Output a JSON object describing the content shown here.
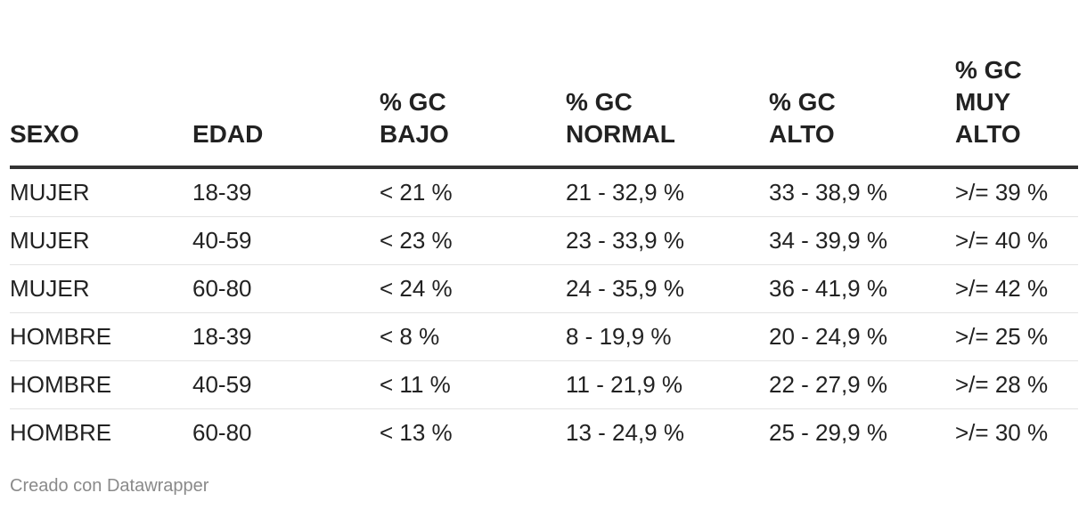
{
  "chart_data": {
    "type": "table",
    "columns": [
      [
        "SEXO"
      ],
      [
        "EDAD"
      ],
      [
        "% GC",
        "BAJO"
      ],
      [
        "% GC",
        "NORMAL"
      ],
      [
        "% GC",
        "ALTO"
      ],
      [
        "% GC",
        "MUY",
        "ALTO"
      ]
    ],
    "rows": [
      [
        "MUJER",
        "18-39",
        "< 21 %",
        "21 - 32,9 %",
        "33 - 38,9 %",
        ">/= 39 %"
      ],
      [
        "MUJER",
        "40-59",
        "< 23 %",
        "23 - 33,9 %",
        "34 - 39,9 %",
        ">/= 40 %"
      ],
      [
        "MUJER",
        "60-80",
        "< 24 %",
        "24 - 35,9 %",
        "36 - 41,9 %",
        ">/= 42 %"
      ],
      [
        "HOMBRE",
        "18-39",
        "< 8 %",
        "8 - 19,9 %",
        "20 - 24,9 %",
        ">/= 25 %"
      ],
      [
        "HOMBRE",
        "40-59",
        "< 11 %",
        "11 - 21,9 %",
        "22 - 27,9 %",
        ">/= 28 %"
      ],
      [
        "HOMBRE",
        "60-80",
        "< 13 %",
        "13 - 24,9 %",
        "25 - 29,9 %",
        ">/= 30 %"
      ]
    ]
  },
  "footer": {
    "credit": "Creado con Datawrapper"
  }
}
